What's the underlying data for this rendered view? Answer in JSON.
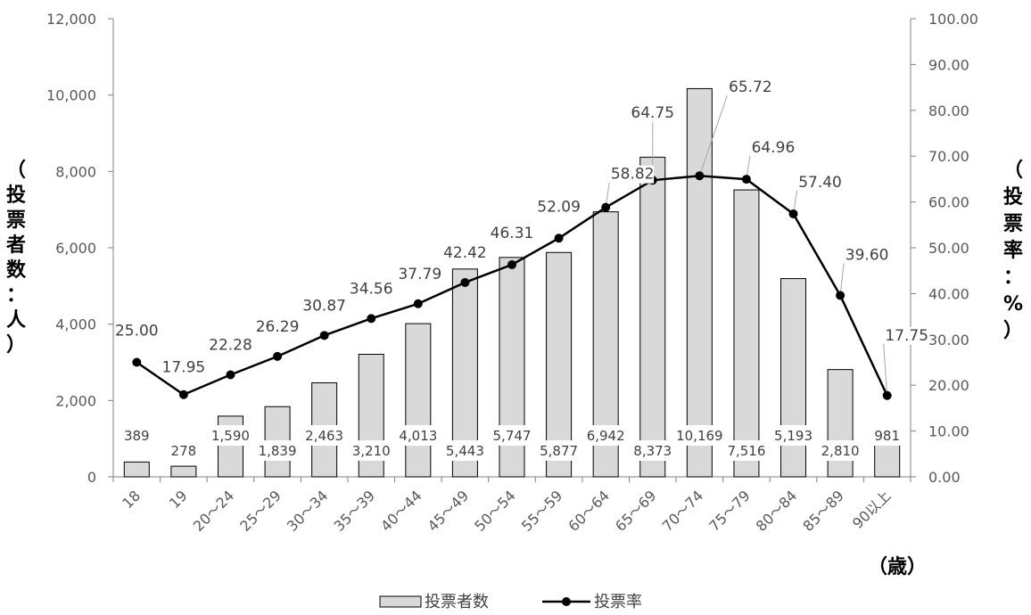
{
  "chart_data": {
    "type": "bar+line",
    "categories": [
      "18",
      "19",
      "20～24",
      "25～29",
      "30～34",
      "35～39",
      "40～44",
      "45～49",
      "50～54",
      "55～59",
      "60～64",
      "65～69",
      "70～74",
      "75～79",
      "80～84",
      "85～89",
      "90以上"
    ],
    "series": [
      {
        "name": "投票者数",
        "type": "bar",
        "axis": "left",
        "values": [
          389,
          278,
          1590,
          1839,
          2463,
          3210,
          4013,
          5443,
          5747,
          5877,
          6942,
          8373,
          10169,
          7516,
          5193,
          2810,
          981
        ],
        "labels": [
          "389",
          "278",
          "1,590",
          "1,839",
          "2,463",
          "3,210",
          "4,013",
          "5,443",
          "5,747",
          "5,877",
          "6,942",
          "8,373",
          "10,169",
          "7,516",
          "5,193",
          "2,810",
          "981"
        ],
        "color": "#d9d9d9"
      },
      {
        "name": "投票率",
        "type": "line",
        "axis": "right",
        "values": [
          25.0,
          17.95,
          22.28,
          26.29,
          30.87,
          34.56,
          37.79,
          42.42,
          46.31,
          52.09,
          58.82,
          64.75,
          65.72,
          64.96,
          57.4,
          39.6,
          17.75
        ],
        "labels": [
          "25.00",
          "17.95",
          "22.28",
          "26.29",
          "30.87",
          "34.56",
          "37.79",
          "42.42",
          "46.31",
          "52.09",
          "58.82",
          "64.75",
          "65.72",
          "64.96",
          "57.40",
          "39.60",
          "17.75"
        ],
        "color": "#000000"
      }
    ],
    "ylim_left": [
      0,
      12000
    ],
    "ylim_right": [
      0,
      100
    ],
    "yticks_left": [
      "0",
      "2,000",
      "4,000",
      "6,000",
      "8,000",
      "10,000",
      "12,000"
    ],
    "yticks_right": [
      "0.00",
      "10.00",
      "20.00",
      "30.00",
      "40.00",
      "50.00",
      "60.00",
      "70.00",
      "80.00",
      "90.00",
      "100.00"
    ],
    "ylabel_left": [
      "（",
      "投",
      "票",
      "者",
      "数",
      "：",
      "人",
      "）"
    ],
    "ylabel_right": [
      "（",
      "投",
      "票",
      "率",
      "：",
      "%",
      "）"
    ],
    "xlabel": "（歳）",
    "legend": {
      "position": "bottom",
      "items": [
        "投票者数",
        "投票率"
      ]
    },
    "grid": false
  }
}
